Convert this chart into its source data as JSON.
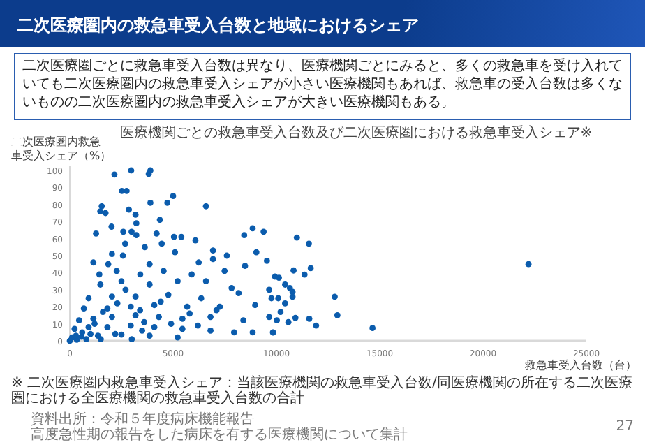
{
  "chart_data": {
    "type": "scatter",
    "title": "二次医療圏内の救急車受入台数と地域におけるシェア",
    "subtitle": "医療機関ごとの救急車受入台数及び二次医療圏における救急車受入シェア※",
    "xlabel": "救急車受入台数（台）",
    "ylabel": "二次医療圏内救急車受入シェア（%）",
    "annotations": [
      "二次医療圏ごとに救急車受入台数は異なり、医療機関ごとにみると、多くの救急車を受け入れていても二次医療圏内の救急車受入シェアが小さい医療機関もあれば、救急車の受入台数は多くないものの二次医療圏内の救急車受入シェアが大きい医療機関もある。",
      "※ 二次医療圏内救急車受入シェア：当該医療機関の救急車受入台数/同医療機関の所在する二次医療圏における全医療機関の救急車受入台数の合計",
      "資料出所：令和５年度病床機能報告",
      "高度急性期の報告をした病床を有する医療機関について集計",
      "27"
    ],
    "x": [
      2160,
      2970,
      3820,
      3900,
      2520,
      2750,
      5000,
      4720,
      3900,
      6590,
      1545,
      1475,
      1730,
      2860,
      3180,
      4360,
      2020,
      1270,
      3220,
      2990,
      2590,
      3220,
      5040,
      5400,
      6080,
      4200,
      2680,
      4450,
      8850,
      8440,
      9380,
      9030,
      7600,
      6930,
      2040,
      2570,
      3630,
      5090,
      1140,
      1860,
      3860,
      6240,
      6930,
      8480,
      9540,
      10120,
      1430,
      2270,
      3410,
      4540,
      5900,
      7490,
      1480,
      2500,
      3860,
      5220,
      6590,
      7830,
      9650,
      910,
      2040,
      3180,
      4770,
      6360,
      8170,
      9760,
      680,
      1820,
      2950,
      4090,
      5680,
      7260,
      8970,
      450,
      1140,
      2040,
      3180,
      4310,
      5450,
      6810,
      8400,
      9650,
      230,
      910,
      1820,
      2950,
      4090,
      5450,
      6810,
      7950,
      8850,
      9830,
      110,
      570,
      1360,
      2500,
      3860,
      5220,
      0,
      340,
      10990,
      11570,
      22200,
      11660,
      10830,
      11360,
      9930,
      10420,
      10650,
      10780,
      12820,
      10780,
      10090,
      10420,
      10200,
      12950,
      11590,
      10920,
      10020,
      10580,
      11920,
      14650,
      9840,
      600,
      1200,
      1600,
      2300,
      2700,
      3400,
      3600,
      4400,
      4900,
      5800,
      6200,
      7100,
      2200,
      3000,
      3500,
      1000,
      1500,
      300,
      800
    ],
    "values": [
      97.6,
      100,
      98,
      100,
      88,
      88,
      85,
      81,
      81,
      79,
      79,
      76,
      75,
      77,
      74,
      71,
      67,
      63,
      69,
      64,
      64,
      62,
      61,
      61,
      59,
      63,
      57,
      57,
      66,
      62,
      64,
      52,
      50,
      53,
      51,
      50,
      55,
      52,
      46,
      45,
      45,
      46,
      48,
      44,
      47,
      37,
      39,
      41,
      39,
      41,
      39,
      41,
      33,
      35,
      33,
      35,
      35,
      31,
      30,
      25,
      26,
      26,
      27,
      25,
      28,
      25,
      19,
      19,
      20,
      21,
      20,
      20,
      21,
      12,
      13,
      14,
      15,
      14,
      13,
      14,
      12,
      14,
      7,
      8,
      8,
      9,
      8,
      7,
      6,
      5,
      5,
      5,
      2,
      2.4,
      3,
      3.6,
      3,
      2,
      0,
      0.7,
      60.6,
      57,
      45,
      42.7,
      41.3,
      38.9,
      37.7,
      33,
      31,
      28.7,
      25.9,
      25.9,
      25,
      22,
      17,
      15,
      13,
      13.5,
      12,
      11,
      9,
      7.5,
      4.9,
      5,
      10,
      17,
      22,
      30,
      18,
      11,
      23,
      10,
      16,
      9,
      18,
      4,
      1,
      6,
      4,
      1,
      3,
      1
    ],
    "color": "#0b5cad",
    "marker": "circle",
    "xlim": [
      0,
      25000
    ],
    "ylim": [
      0,
      100
    ],
    "xticks": [
      0,
      5000,
      10000,
      15000,
      20000,
      25000
    ],
    "yticks": [
      0,
      10,
      20,
      30,
      40,
      50,
      60,
      70,
      80,
      90,
      100
    ]
  }
}
